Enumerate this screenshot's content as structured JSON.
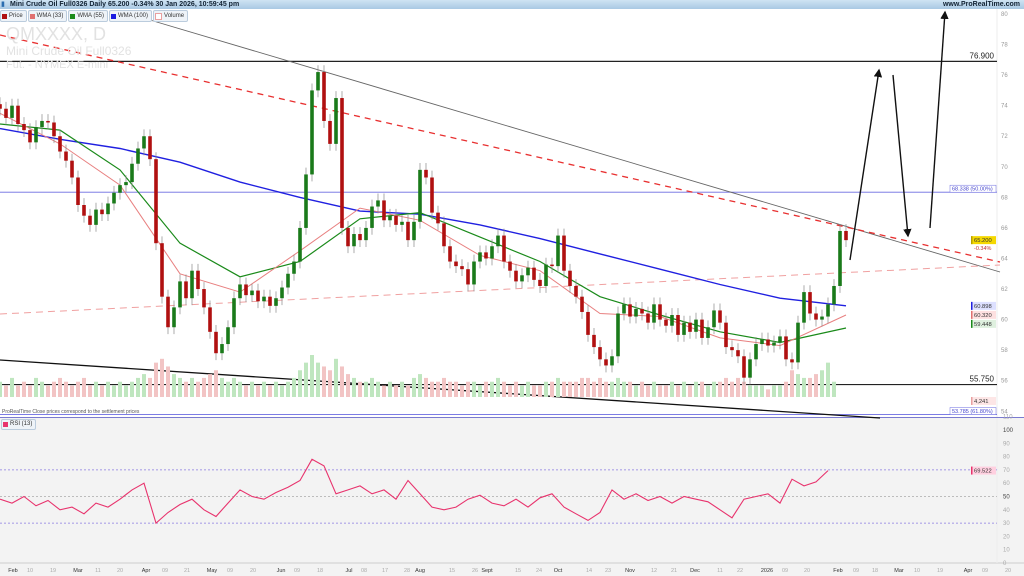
{
  "header": {
    "title": "Mini Crude Oil Full0326 Daily 65.200 -0.34% 30 Jan 2026, 10:59:45 pm",
    "site": "www.ProRealTime.com"
  },
  "legend": [
    {
      "label": "Price",
      "color": "#b01010"
    },
    {
      "label": "WMA (33)",
      "color": "#e07070"
    },
    {
      "label": "WMA (55)",
      "color": "#1a8a1a"
    },
    {
      "label": "WMA (100)",
      "color": "#1a1ae0"
    },
    {
      "label": "Volume",
      "color": "#f0b0b0"
    }
  ],
  "watermark": {
    "symbol": "QMXXXX, D",
    "name": "Mini Crude Oil Full0326",
    "exchange": "Fut. - NYMEX E-mini"
  },
  "footer_note": "ProRealTime   Close prices correspond to the settlement prices",
  "colors": {
    "up": "#1a7a1a",
    "down": "#b01010",
    "wma33": "#e88080",
    "wma55": "#1a8a1a",
    "wma100": "#2020e0",
    "rsi": "#e8336d",
    "vol_up": "#bfe6bf",
    "vol_down": "#f2c4c4"
  },
  "chart_data": [
    {
      "type": "candlestick",
      "title": "Mini Crude Oil Full0326 Daily",
      "ylim": [
        53,
        80.5
      ],
      "y_ticks": [
        "80",
        "78",
        "76",
        "74",
        "72",
        "70",
        "68",
        "66",
        "64",
        "62",
        "60",
        "58",
        "56",
        "54"
      ],
      "x_ticks": [
        "Feb",
        "10",
        "19",
        "Mar",
        "11",
        "20",
        "Apr",
        "09",
        "21",
        "May",
        "09",
        "20",
        "Jun",
        "09",
        "18",
        "Jul",
        "08",
        "17",
        "28",
        "Aug",
        "15",
        "26",
        "Sept",
        "15",
        "24",
        "Oct",
        "14",
        "23",
        "Nov",
        "12",
        "21",
        "Dec",
        "11",
        "22",
        "2026",
        "09",
        "20",
        "Feb",
        "09",
        "18",
        "Mar",
        "10",
        "19",
        "Apr",
        "09",
        "20"
      ],
      "closes": [
        73.8,
        73.2,
        74.0,
        72.8,
        72.4,
        71.6,
        72.6,
        73.0,
        72.9,
        72.0,
        71.0,
        70.4,
        69.3,
        67.5,
        66.8,
        66.2,
        67.2,
        66.9,
        67.6,
        68.3,
        68.8,
        69.0,
        70.2,
        71.2,
        72.0,
        70.5,
        65.0,
        61.5,
        59.5,
        60.8,
        62.5,
        61.4,
        63.2,
        62.0,
        60.8,
        59.2,
        57.8,
        58.4,
        59.5,
        61.4,
        62.3,
        61.6,
        61.9,
        61.2,
        61.5,
        60.9,
        61.4,
        62.1,
        63.0,
        63.8,
        66.0,
        69.5,
        75.0,
        76.2,
        73.0,
        71.5,
        74.5,
        66.0,
        64.8,
        65.6,
        65.2,
        66.0,
        67.4,
        67.8,
        66.5,
        66.8,
        66.2,
        66.4,
        65.2,
        66.4,
        69.8,
        69.3,
        67.0,
        66.3,
        64.8,
        63.8,
        63.5,
        63.3,
        62.3,
        63.8,
        64.4,
        64.0,
        64.8,
        65.5,
        63.8,
        63.2,
        62.5,
        62.9,
        63.4,
        62.6,
        62.2,
        63.6,
        63.5,
        65.5,
        63.2,
        62.2,
        61.5,
        60.5,
        59.0,
        58.2,
        57.4,
        57.0,
        57.6,
        60.4,
        61.0,
        60.2,
        60.7,
        60.4,
        59.8,
        61.0,
        60.0,
        59.6,
        60.3,
        59.0,
        59.8,
        59.2,
        60.0,
        58.8,
        59.5,
        60.6,
        59.8,
        58.2,
        58.0,
        57.6,
        56.2,
        57.4,
        58.4,
        58.7,
        58.3,
        58.5,
        58.9,
        57.4,
        57.2,
        59.8,
        61.8,
        60.4,
        60.0,
        60.2,
        61.0,
        62.2,
        65.8,
        65.2
      ],
      "volume": [
        4,
        3,
        5,
        3,
        4,
        3,
        5,
        4,
        3,
        4,
        5,
        4,
        3,
        4,
        5,
        3,
        4,
        3,
        4,
        3,
        4,
        3,
        4,
        5,
        6,
        5,
        9,
        10,
        8,
        6,
        5,
        4,
        5,
        4,
        5,
        6,
        7,
        5,
        4,
        5,
        4,
        3,
        4,
        3,
        4,
        3,
        4,
        3,
        4,
        5,
        7,
        9,
        11,
        9,
        8,
        7,
        10,
        8,
        6,
        5,
        4,
        4,
        5,
        4,
        3,
        4,
        3,
        4,
        3,
        5,
        6,
        5,
        4,
        4,
        5,
        4,
        4,
        3,
        4,
        4,
        3,
        4,
        4,
        5,
        4,
        3,
        4,
        3,
        4,
        3,
        3,
        4,
        4,
        5,
        4,
        4,
        4,
        5,
        5,
        4,
        5,
        4,
        4,
        5,
        4,
        4,
        3,
        4,
        3,
        4,
        3,
        3,
        4,
        3,
        4,
        3,
        4,
        4,
        3,
        4,
        4,
        5,
        4,
        5,
        4,
        3,
        3,
        3,
        2,
        3,
        3,
        4,
        7,
        6,
        5,
        5,
        6,
        7,
        9,
        4
      ],
      "last_volume": "4,241",
      "series": [
        {
          "name": "WMA (33)",
          "values": [
            73.5,
            71.5,
            68.8,
            63.0,
            61.8,
            64.5,
            67.3,
            66.5,
            64.2,
            63.2,
            60.4,
            60.2,
            58.8,
            58.3,
            60.3
          ],
          "last": "60.320"
        },
        {
          "name": "WMA (55)",
          "values": [
            72.8,
            72.4,
            69.8,
            65.0,
            62.8,
            63.8,
            66.6,
            67.0,
            65.4,
            63.8,
            61.5,
            60.3,
            59.2,
            58.5,
            59.45
          ],
          "last": "59.448"
        },
        {
          "name": "WMA (100)",
          "values": [
            72.5,
            71.8,
            71.2,
            70.3,
            69.0,
            68.0,
            67.1,
            66.9,
            66.2,
            65.3,
            64.3,
            63.3,
            62.3,
            61.4,
            60.9
          ],
          "last": "60.898"
        }
      ],
      "last_price": "65.200",
      "last_change": "-0.34%",
      "levels": [
        {
          "label": "76.900",
          "value": 76.9,
          "kind": "horizontal"
        },
        {
          "label": "55.750",
          "value": 55.75,
          "kind": "horizontal"
        },
        {
          "label": "68.338 (50.00%)",
          "value": 68.338,
          "kind": "fibonacci"
        },
        {
          "label": "53.785 (61.80%)",
          "value": 53.785,
          "kind": "fibonacci"
        }
      ]
    },
    {
      "type": "line",
      "title": "RSI (13)",
      "ylim": [
        0,
        110
      ],
      "y_ticks": [
        "110",
        "100",
        "90",
        "80",
        "70",
        "60",
        "50",
        "40",
        "30",
        "20",
        "10",
        "0"
      ],
      "levels": [
        70,
        50,
        30
      ],
      "values": [
        48,
        45,
        50,
        43,
        47,
        40,
        42,
        37,
        45,
        42,
        48,
        55,
        60,
        30,
        38,
        44,
        48,
        40,
        35,
        45,
        55,
        50,
        48,
        53,
        57,
        62,
        78,
        73,
        52,
        55,
        58,
        52,
        55,
        48,
        62,
        52,
        42,
        40,
        42,
        48,
        51,
        45,
        43,
        48,
        42,
        49,
        52,
        42,
        37,
        32,
        38,
        55,
        48,
        52,
        47,
        50,
        45,
        50,
        48,
        46,
        40,
        34,
        48,
        50,
        52,
        45,
        63,
        58,
        61,
        69.5
      ],
      "last": "69.522"
    }
  ]
}
